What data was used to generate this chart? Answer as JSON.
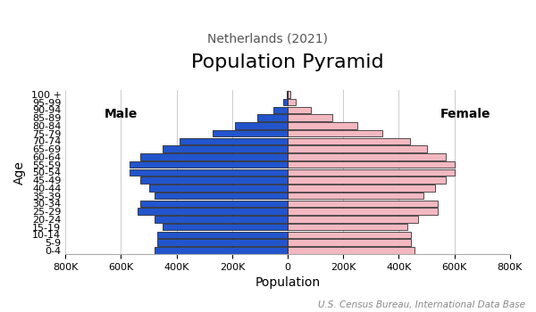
{
  "title": "Population Pyramid",
  "subtitle": "Netherlands (2021)",
  "xlabel": "Population",
  "ylabel": "Age",
  "source": "U.S. Census Bureau, International Data Base",
  "age_groups": [
    "0-4",
    "5-9",
    "10-14",
    "15-19",
    "20-24",
    "25-29",
    "30-34",
    "35-39",
    "40-44",
    "45-49",
    "50-54",
    "55-59",
    "60-64",
    "65-69",
    "70-74",
    "75-79",
    "80-84",
    "85-89",
    "90-94",
    "95-99",
    "100 +"
  ],
  "male": [
    480000,
    470000,
    470000,
    450000,
    480000,
    540000,
    530000,
    480000,
    500000,
    530000,
    570000,
    570000,
    530000,
    450000,
    390000,
    270000,
    190000,
    110000,
    52000,
    17000,
    4000
  ],
  "female": [
    455000,
    445000,
    445000,
    430000,
    470000,
    540000,
    540000,
    490000,
    530000,
    570000,
    600000,
    600000,
    570000,
    500000,
    440000,
    340000,
    250000,
    160000,
    85000,
    30000,
    8000
  ],
  "male_color": "#2255cc",
  "female_color": "#f4b8c1",
  "bar_edgecolor": "#111111",
  "bar_linewidth": 0.5,
  "xlim": 800000,
  "background_color": "#ffffff",
  "grid_color": "#cccccc",
  "title_fontsize": 16,
  "subtitle_fontsize": 10,
  "label_fontsize": 10,
  "tick_fontsize": 8,
  "source_fontsize": 7.5
}
